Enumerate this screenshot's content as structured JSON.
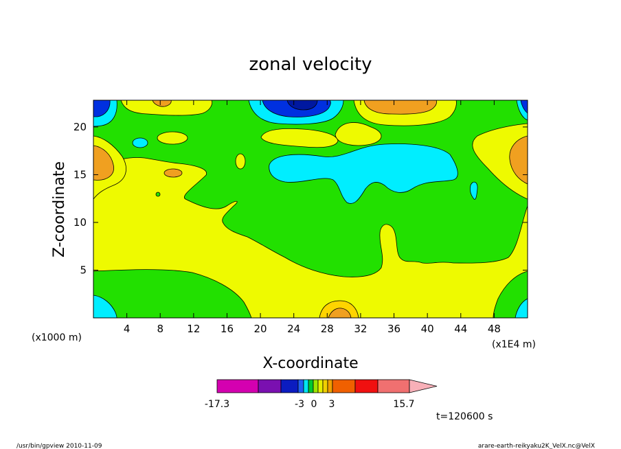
{
  "chart_data": {
    "type": "heatmap",
    "title": "zonal velocity",
    "xlabel": "X-coordinate",
    "ylabel": "Z-coordinate",
    "x_unit_note": "(x1E4 m)",
    "y_unit_note": "(x1000 m)",
    "xlim": [
      0,
      52
    ],
    "ylim": [
      0,
      22.8
    ],
    "x_ticks": [
      "4",
      "8",
      "12",
      "16",
      "20",
      "24",
      "28",
      "32",
      "36",
      "40",
      "44",
      "48"
    ],
    "y_ticks": [
      "5",
      "10",
      "15",
      "20"
    ],
    "colorbar": {
      "label_min": "-17.3",
      "label_neg": "-3",
      "label_zero": "0",
      "label_pos": "3",
      "label_max": "15.7",
      "colors": [
        "#d400b0",
        "#7a10b0",
        "#0b1cc0",
        "#1f5ff0",
        "#00e6f0",
        "#00c832",
        "#9ee600",
        "#e6f000",
        "#f0d000",
        "#f0a000",
        "#f06000",
        "#f01010",
        "#f07070",
        "#f8b0b8"
      ]
    },
    "time_label": "t=120600 s"
  },
  "footer": {
    "left": "/usr/bin/gpview   2010-11-09",
    "right": "arare-earth-reikyaku2K_VelX.nc@VelX"
  },
  "colors": {
    "yellow": "#eefa00",
    "green": "#22e000",
    "cyan": "#00eeff",
    "lightorange": "#ffe400",
    "orange": "#f0a020",
    "blue": "#0030e0",
    "darkblue": "#0018a0"
  }
}
